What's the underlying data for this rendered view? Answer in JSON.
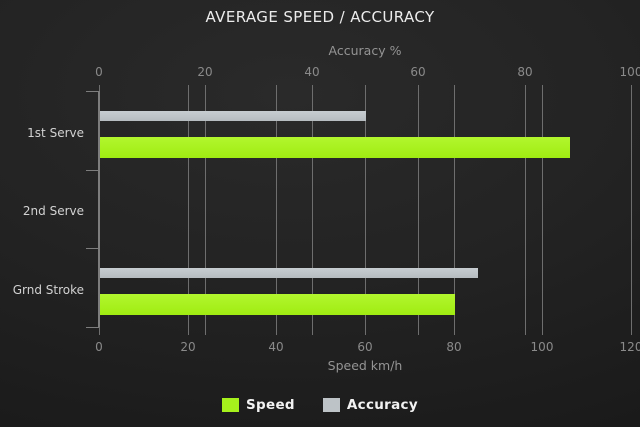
{
  "title": "AVERAGE SPEED / ACCURACY",
  "chart_data": {
    "type": "bar",
    "orientation": "horizontal",
    "categories": [
      "1st Serve",
      "2nd Serve",
      "Grnd Stroke"
    ],
    "series": [
      {
        "name": "Accuracy",
        "axis": "top",
        "color": "#bdc3c7",
        "values": [
          50,
          0,
          71
        ]
      },
      {
        "name": "Speed",
        "axis": "bottom",
        "color": "#a6f11c",
        "values": [
          106,
          0,
          80
        ]
      }
    ],
    "axes": {
      "top": {
        "label": "Accuracy %",
        "min": 0,
        "max": 100,
        "ticks": [
          0,
          20,
          40,
          60,
          80,
          100
        ]
      },
      "bottom": {
        "label": "Speed km/h",
        "min": 0,
        "max": 120,
        "ticks": [
          0,
          20,
          40,
          60,
          80,
          100,
          120
        ]
      }
    },
    "grid": true,
    "legend_position": "bottom",
    "legend": [
      {
        "label": "Speed",
        "color": "#a6f11c"
      },
      {
        "label": "Accuracy",
        "color": "#bdc3c7"
      }
    ]
  },
  "colors": {
    "background_center": "#2a2a2a",
    "background_edge": "#181818",
    "grid_line": "#6e6e6e",
    "axis_line": "#7d7d7d",
    "title_text": "#ececec",
    "tick_text": "#8a8a8a",
    "axis_title_text": "#949494",
    "category_text": "#d2d2d2",
    "legend_text": "#f2f2f2"
  }
}
